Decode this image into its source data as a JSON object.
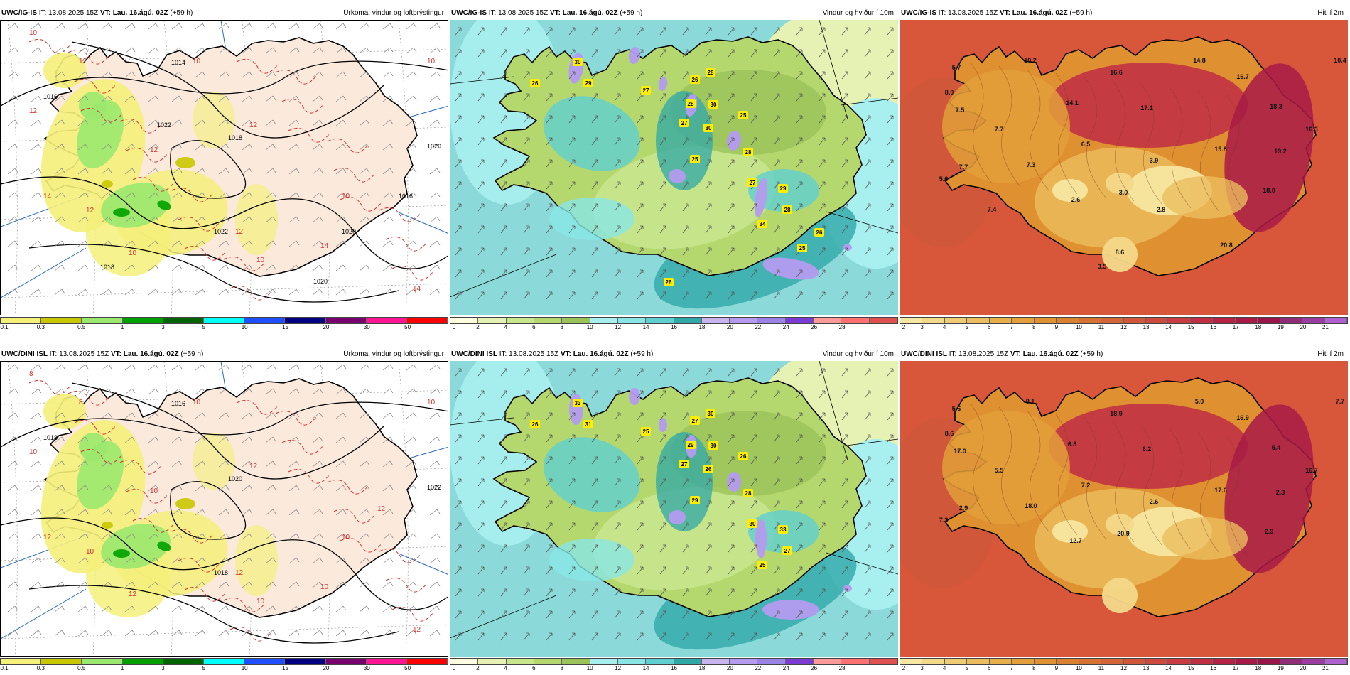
{
  "panels": [
    {
      "model": "UWC/IG-IS",
      "it_label": "IT:",
      "init": "13.08.2025 15Z",
      "vt_label": "VT:",
      "valid": "Lau. 16.ágú. 02Z",
      "lead": "(+59 h)",
      "field": "Úrkoma, vindur og loftþrýstingur",
      "type": "precip"
    },
    {
      "model": "UWC/IG-IS",
      "it_label": "IT:",
      "init": "13.08.2025 15Z",
      "vt_label": "VT:",
      "valid": "Lau. 16.ágú. 02Z",
      "lead": "(+59 h)",
      "field": "Vindur og hviður í 10m",
      "type": "wind"
    },
    {
      "model": "UWC/IG-IS",
      "it_label": "IT:",
      "init": "13.08.2025 15Z",
      "vt_label": "VT:",
      "valid": "Lau. 16.ágú. 02Z",
      "lead": "(+59 h)",
      "field": "Hiti í 2m",
      "type": "temp"
    },
    {
      "model": "UWC/DINI ISL",
      "it_label": "IT:",
      "init": "13.08.2025 15Z",
      "vt_label": "VT:",
      "valid": "Lau. 16.ágú. 02Z",
      "lead": "(+59 h)",
      "field": "Úrkoma, vindur og loftþrýstingur",
      "type": "precip"
    },
    {
      "model": "UWC/DINI ISL",
      "it_label": "IT:",
      "init": "13.08.2025 15Z",
      "vt_label": "VT:",
      "valid": "Lau. 16.ágú. 02Z",
      "lead": "(+59 h)",
      "field": "Vindur og hviður í 10m",
      "type": "wind"
    },
    {
      "model": "UWC/DINI ISL",
      "it_label": "IT:",
      "init": "13.08.2025 15Z",
      "vt_label": "VT:",
      "valid": "Lau. 16.ágú. 02Z",
      "lead": "(+59 h)",
      "field": "Hiti í 2m",
      "type": "temp"
    }
  ],
  "scales": {
    "precip": {
      "ticks": [
        "0.1",
        "0.3",
        "0.5",
        "1",
        "3",
        "5",
        "10",
        "15",
        "20",
        "30",
        "50"
      ],
      "colors": [
        "#f4f07a",
        "#c8c800",
        "#9be86e",
        "#00a000",
        "#006400",
        "#00ffff",
        "#1e50ff",
        "#000080",
        "#78006e",
        "#ff1493",
        "#ff0000"
      ]
    },
    "wind": {
      "ticks": [
        "0",
        "2",
        "4",
        "6",
        "8",
        "10",
        "12",
        "14",
        "16",
        "18",
        "20",
        "22",
        "24",
        "26",
        "28"
      ],
      "colors": [
        "#ffffe0",
        "#e6f2b4",
        "#c8e68c",
        "#b4d76e",
        "#9ac35a",
        "#a8f0f0",
        "#88e6e6",
        "#5fcfcf",
        "#2fa8a8",
        "#c8b4f0",
        "#b49bef",
        "#9a82e6",
        "#7a3cd2",
        "#ff9a9a",
        "#ff7070",
        "#e05050"
      ]
    },
    "temp": {
      "ticks": [
        "2",
        "3",
        "4",
        "5",
        "6",
        "7",
        "8",
        "9",
        "10",
        "11",
        "12",
        "13",
        "14",
        "15",
        "16",
        "17",
        "18",
        "19",
        "20",
        "21"
      ],
      "colors": [
        "#f7e7a0",
        "#f3d98a",
        "#efcb74",
        "#ebbd5e",
        "#e7ae4a",
        "#e39f3a",
        "#df9030",
        "#da8130",
        "#d67232",
        "#d36536",
        "#d0573a",
        "#cd4a3e",
        "#c83c42",
        "#c02e44",
        "#b52244",
        "#a81a46",
        "#991447",
        "#8f2e78",
        "#9a3ca0",
        "#b060d0"
      ]
    }
  },
  "pressure_labels_top": [
    "1014",
    "1016",
    "1018",
    "1020",
    "1022",
    "1020",
    "1016",
    "1018",
    "1022",
    "1020"
  ],
  "pressure_labels_bottom": [
    "1016",
    "1018",
    "1020",
    "1022",
    "1018"
  ],
  "isotherm_labels_top": [
    "10",
    "12",
    "10",
    "10",
    "12",
    "12",
    "12",
    "14",
    "10",
    "12",
    "14",
    "14",
    "10",
    "12",
    "10"
  ],
  "isotherm_labels_bottom": [
    "8",
    "8",
    "10",
    "10",
    "10",
    "12",
    "10",
    "12",
    "10",
    "12",
    "10",
    "12",
    "12",
    "10",
    "10",
    "12"
  ],
  "gusts_top": [
    "30",
    "29",
    "26",
    "27",
    "26",
    "28",
    "28",
    "30",
    "27",
    "25",
    "30",
    "25",
    "28",
    "27",
    "29",
    "34",
    "28",
    "25",
    "26",
    "26"
  ],
  "gusts_bottom": [
    "33",
    "31",
    "26",
    "25",
    "27",
    "30",
    "29",
    "30",
    "27",
    "26",
    "26",
    "29",
    "28",
    "30",
    "33",
    "25",
    "27"
  ],
  "temps_top": [
    "5.7",
    "10.2",
    "8.0",
    "7.5",
    "16.6",
    "14.8",
    "16.7",
    "10.4",
    "14.1",
    "17.1",
    "18.3",
    "16.3",
    "7.7",
    "6.5",
    "15.8",
    "19.2",
    "7.7",
    "7.3",
    "3.9",
    "5.6",
    "3.0",
    "18.0",
    "2.6",
    "7.4",
    "2.8",
    "8.6",
    "3.5",
    "20.8"
  ],
  "temps_bottom": [
    "5.6",
    "8.1",
    "8.6",
    "17.0",
    "18.9",
    "5.0",
    "16.9",
    "7.7",
    "6.8",
    "6.2",
    "5.4",
    "16.7",
    "5.5",
    "7.2",
    "17.6",
    "2.3",
    "2.9",
    "18.0",
    "2.6",
    "7.3",
    "20.9",
    "2.9",
    "12.7"
  ]
}
